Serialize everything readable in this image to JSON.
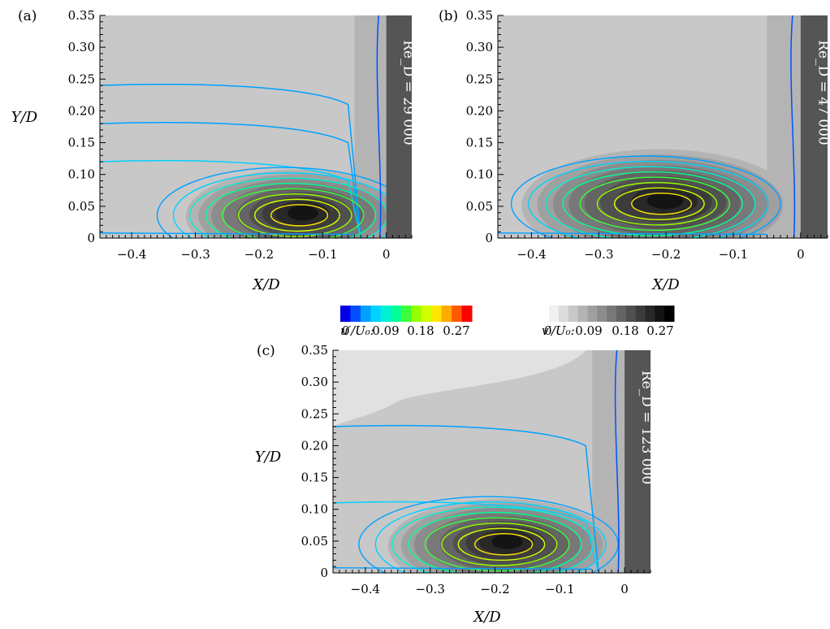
{
  "chart_data": [
    {
      "type": "heatmap",
      "panel_label": "(a)",
      "annotation": "Re_D = 29 000",
      "xlabel": "X/D",
      "ylabel": "Y/D",
      "xlim": [
        -0.45,
        0.04
      ],
      "ylim": [
        0,
        0.35
      ],
      "xticks": [
        -0.4,
        -0.3,
        -0.2,
        -0.1,
        0
      ],
      "xtick_labels": [
        "−0.4",
        "−0.3",
        "−0.2",
        "−0.1",
        "0"
      ],
      "yticks": [
        0,
        0.05,
        0.1,
        0.15,
        0.2,
        0.25,
        0.3,
        0.35
      ],
      "ytick_labels": [
        "0",
        "0.05",
        "0.10",
        "0.15",
        "0.20",
        "0.25",
        "0.30",
        "0.35"
      ],
      "peak_location": [
        -0.13,
        0.04
      ]
    },
    {
      "type": "heatmap",
      "panel_label": "(b)",
      "annotation": "Re_D = 47 000",
      "xlabel": "X/D",
      "ylabel": "",
      "xlim": [
        -0.45,
        0.04
      ],
      "ylim": [
        0,
        0.35
      ],
      "xticks": [
        -0.4,
        -0.3,
        -0.2,
        -0.1,
        0
      ],
      "xtick_labels": [
        "−0.4",
        "−0.3",
        "−0.2",
        "−0.1",
        "0"
      ],
      "yticks": [
        0,
        0.05,
        0.1,
        0.15,
        0.2,
        0.25,
        0.3,
        0.35
      ],
      "ytick_labels": [
        "0",
        "0.05",
        "0.10",
        "0.15",
        "0.20",
        "0.25",
        "0.30",
        "0.35"
      ],
      "peak_location": [
        -0.2,
        0.06
      ]
    },
    {
      "type": "heatmap",
      "panel_label": "(c)",
      "annotation": "Re_D = 123 000",
      "xlabel": "X/D",
      "ylabel": "Y/D",
      "xlim": [
        -0.45,
        0.04
      ],
      "ylim": [
        0,
        0.35
      ],
      "xticks": [
        -0.4,
        -0.3,
        -0.2,
        -0.1,
        0
      ],
      "xtick_labels": [
        "−0.4",
        "−0.3",
        "−0.2",
        "−0.1",
        "0"
      ],
      "yticks": [
        0,
        0.05,
        0.1,
        0.15,
        0.2,
        0.25,
        0.3,
        0.35
      ],
      "ytick_labels": [
        "0",
        "0.05",
        "0.10",
        "0.15",
        "0.20",
        "0.25",
        "0.30",
        "0.35"
      ],
      "peak_location": [
        -0.18,
        0.05
      ]
    }
  ],
  "colorbars": {
    "u": {
      "label": "u′/U₀:",
      "tick_labels": [
        "0",
        "0.09",
        "0.18",
        "0.27"
      ],
      "colors": [
        "#0000e6",
        "#0050ff",
        "#00a0ff",
        "#00d2ff",
        "#00f0d2",
        "#00ff96",
        "#3cff3c",
        "#96ff00",
        "#d2ff00",
        "#ffe600",
        "#ffaa00",
        "#ff5a00",
        "#ff0000"
      ]
    },
    "v": {
      "label": "v′/U₀:",
      "tick_labels": [
        "0",
        "0.09",
        "0.18",
        "0.27"
      ],
      "colors": [
        "#f0f0f0",
        "#dcdcdc",
        "#c8c8c8",
        "#b4b4b4",
        "#a0a0a0",
        "#8c8c8c",
        "#787878",
        "#646464",
        "#505050",
        "#3c3c3c",
        "#282828",
        "#141414",
        "#000000"
      ]
    }
  },
  "colors": {
    "wall": "#555555",
    "background_field": "#c8c8c8"
  }
}
